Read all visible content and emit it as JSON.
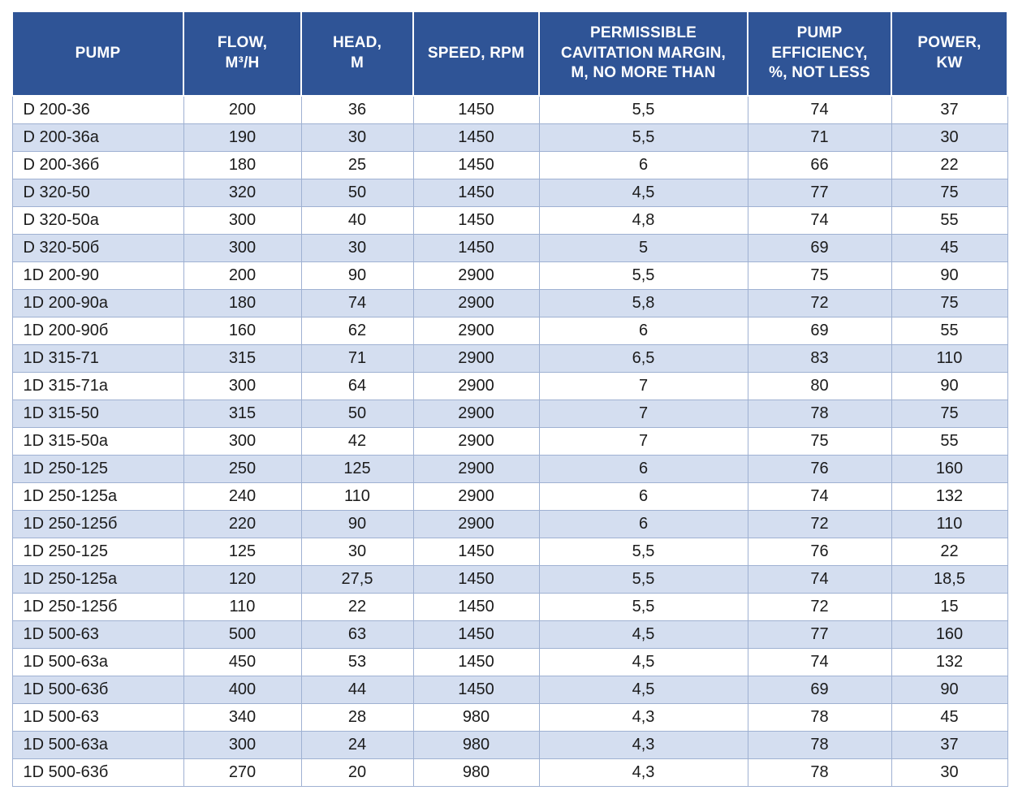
{
  "colors": {
    "header_bg": "#2f5496",
    "header_text": "#ffffff",
    "alt_row_bg": "#d4def0",
    "grid_border": "#9fb1d2",
    "body_text": "#1b1b1b"
  },
  "table": {
    "columns": [
      {
        "key": "pump",
        "label": "PUMP"
      },
      {
        "key": "flow",
        "label": "FLOW,\nM³/H"
      },
      {
        "key": "head",
        "label": "HEAD,\nM"
      },
      {
        "key": "speed",
        "label": "SPEED, RPM"
      },
      {
        "key": "cavitation",
        "label": "PERMISSIBLE\nCAVITATION MARGIN,\nM, NO MORE THAN"
      },
      {
        "key": "efficiency",
        "label": "PUMP\nEFFICIENCY,\n%, NOT LESS"
      },
      {
        "key": "power",
        "label": "POWER,\nKW"
      }
    ],
    "rows": [
      [
        "D 200-36",
        "200",
        "36",
        "1450",
        "5,5",
        "74",
        "37"
      ],
      [
        "D 200-36a",
        "190",
        "30",
        "1450",
        "5,5",
        "71",
        "30"
      ],
      [
        "D 200-36б",
        "180",
        "25",
        "1450",
        "6",
        "66",
        "22"
      ],
      [
        "D 320-50",
        "320",
        "50",
        "1450",
        "4,5",
        "77",
        "75"
      ],
      [
        "D 320-50a",
        "300",
        "40",
        "1450",
        "4,8",
        "74",
        "55"
      ],
      [
        "D 320-50б",
        "300",
        "30",
        "1450",
        "5",
        "69",
        "45"
      ],
      [
        "1D 200-90",
        "200",
        "90",
        "2900",
        "5,5",
        "75",
        "90"
      ],
      [
        "1D 200-90a",
        "180",
        "74",
        "2900",
        "5,8",
        "72",
        "75"
      ],
      [
        "1D 200-90б",
        "160",
        "62",
        "2900",
        "6",
        "69",
        "55"
      ],
      [
        "1D 315-71",
        "315",
        "71",
        "2900",
        "6,5",
        "83",
        "110"
      ],
      [
        "1D 315-71a",
        "300",
        "64",
        "2900",
        "7",
        "80",
        "90"
      ],
      [
        "1D 315-50",
        "315",
        "50",
        "2900",
        "7",
        "78",
        "75"
      ],
      [
        "1D 315-50a",
        "300",
        "42",
        "2900",
        "7",
        "75",
        "55"
      ],
      [
        "1D 250-125",
        "250",
        "125",
        "2900",
        "6",
        "76",
        "160"
      ],
      [
        "1D 250-125a",
        "240",
        "110",
        "2900",
        "6",
        "74",
        "132"
      ],
      [
        "1D 250-125б",
        "220",
        "90",
        "2900",
        "6",
        "72",
        "110"
      ],
      [
        "1D 250-125",
        "125",
        "30",
        "1450",
        "5,5",
        "76",
        "22"
      ],
      [
        "1D 250-125a",
        "120",
        "27,5",
        "1450",
        "5,5",
        "74",
        "18,5"
      ],
      [
        "1D 250-125б",
        "110",
        "22",
        "1450",
        "5,5",
        "72",
        "15"
      ],
      [
        "1D 500-63",
        "500",
        "63",
        "1450",
        "4,5",
        "77",
        "160"
      ],
      [
        "1D 500-63a",
        "450",
        "53",
        "1450",
        "4,5",
        "74",
        "132"
      ],
      [
        "1D 500-63б",
        "400",
        "44",
        "1450",
        "4,5",
        "69",
        "90"
      ],
      [
        "1D 500-63",
        "340",
        "28",
        "980",
        "4,3",
        "78",
        "45"
      ],
      [
        "1D 500-63a",
        "300",
        "24",
        "980",
        "4,3",
        "78",
        "37"
      ],
      [
        "1D 500-63б",
        "270",
        "20",
        "980",
        "4,3",
        "78",
        "30"
      ]
    ]
  }
}
